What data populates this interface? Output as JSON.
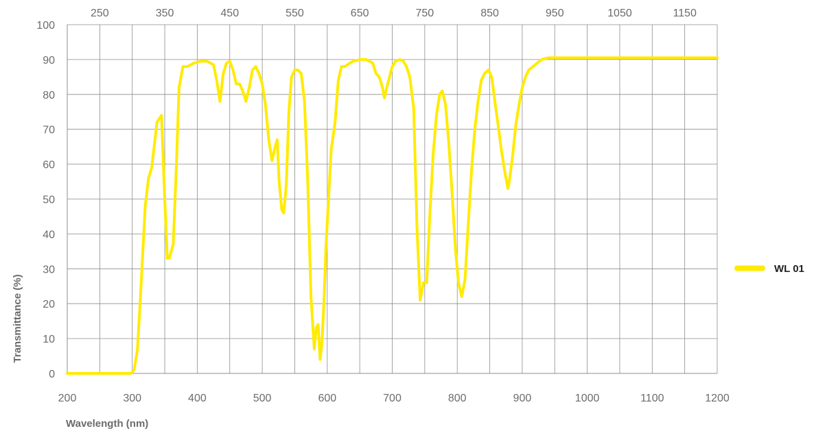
{
  "chart_data": {
    "type": "line",
    "title": "",
    "xlabel": "Wavelength (nm)",
    "ylabel": "Transmittance (%)",
    "xlim": [
      200,
      1200
    ],
    "ylim": [
      0,
      100
    ],
    "grid": true,
    "legend_position": "right",
    "bottom_ticks": [
      "200",
      "300",
      "400",
      "500",
      "600",
      "700",
      "800",
      "900",
      "1000",
      "1100",
      "1200"
    ],
    "top_ticks": [
      "250",
      "350",
      "450",
      "550",
      "650",
      "750",
      "850",
      "950",
      "1050",
      "1150"
    ],
    "y_ticks": [
      "0",
      "10",
      "20",
      "30",
      "40",
      "50",
      "60",
      "70",
      "80",
      "90",
      "100"
    ],
    "series": [
      {
        "name": "WL 01",
        "color": "#ffeb00",
        "x": [
          200,
          250,
          298,
          303,
          308,
          312,
          316,
          320,
          325,
          330,
          338,
          345,
          350,
          354,
          357,
          363,
          368,
          372,
          378,
          385,
          395,
          405,
          415,
          425,
          430,
          435,
          440,
          445,
          450,
          455,
          460,
          465,
          470,
          475,
          480,
          485,
          490,
          495,
          500,
          505,
          510,
          515,
          520,
          523,
          526,
          530,
          533,
          537,
          541,
          545,
          550,
          555,
          560,
          565,
          570,
          575,
          580,
          583,
          586,
          589,
          592,
          595,
          598,
          602,
          606,
          612,
          617,
          622,
          627,
          635,
          640,
          650,
          660,
          670,
          675,
          680,
          685,
          688,
          693,
          700,
          705,
          712,
          717,
          722,
          727,
          733,
          738,
          743,
          748,
          753,
          758,
          763,
          768,
          773,
          777,
          782,
          787,
          792,
          797,
          802,
          807,
          812,
          817,
          822,
          827,
          832,
          837,
          842,
          848,
          853,
          858,
          863,
          868,
          873,
          878,
          880,
          885,
          890,
          895,
          900,
          905,
          910,
          920,
          930,
          940,
          950,
          1000,
          1050,
          1100,
          1150,
          1200
        ],
        "values": [
          0,
          0,
          0,
          1,
          7,
          20,
          34,
          48,
          56,
          59,
          72,
          74,
          50,
          33,
          33,
          37,
          60,
          82,
          88,
          88,
          89,
          89.5,
          89.5,
          88.5,
          84,
          78,
          86,
          89,
          89.5,
          87,
          83,
          83,
          81,
          78,
          82,
          87,
          88,
          86,
          83,
          77,
          67,
          61,
          65,
          67,
          55,
          47,
          46,
          54,
          75,
          85,
          87,
          87,
          86,
          78,
          55,
          22,
          7,
          13,
          14,
          4,
          9,
          21,
          36,
          50,
          64,
          72,
          84,
          88,
          88,
          89,
          89.5,
          90,
          90,
          89,
          86,
          85,
          82,
          79,
          83,
          88,
          89.5,
          90,
          89.5,
          88,
          85,
          76,
          42,
          21,
          26,
          26,
          46,
          63,
          74,
          80,
          81,
          77,
          66,
          52,
          36,
          26,
          22,
          27,
          43,
          58,
          70,
          78,
          84,
          86,
          87,
          85,
          78,
          71,
          64,
          58,
          53,
          55,
          62,
          71,
          77,
          82,
          85,
          87,
          88.5,
          90,
          90.5,
          90.5,
          90.5,
          90.5,
          90.5,
          90.5,
          90.5
        ]
      }
    ]
  }
}
